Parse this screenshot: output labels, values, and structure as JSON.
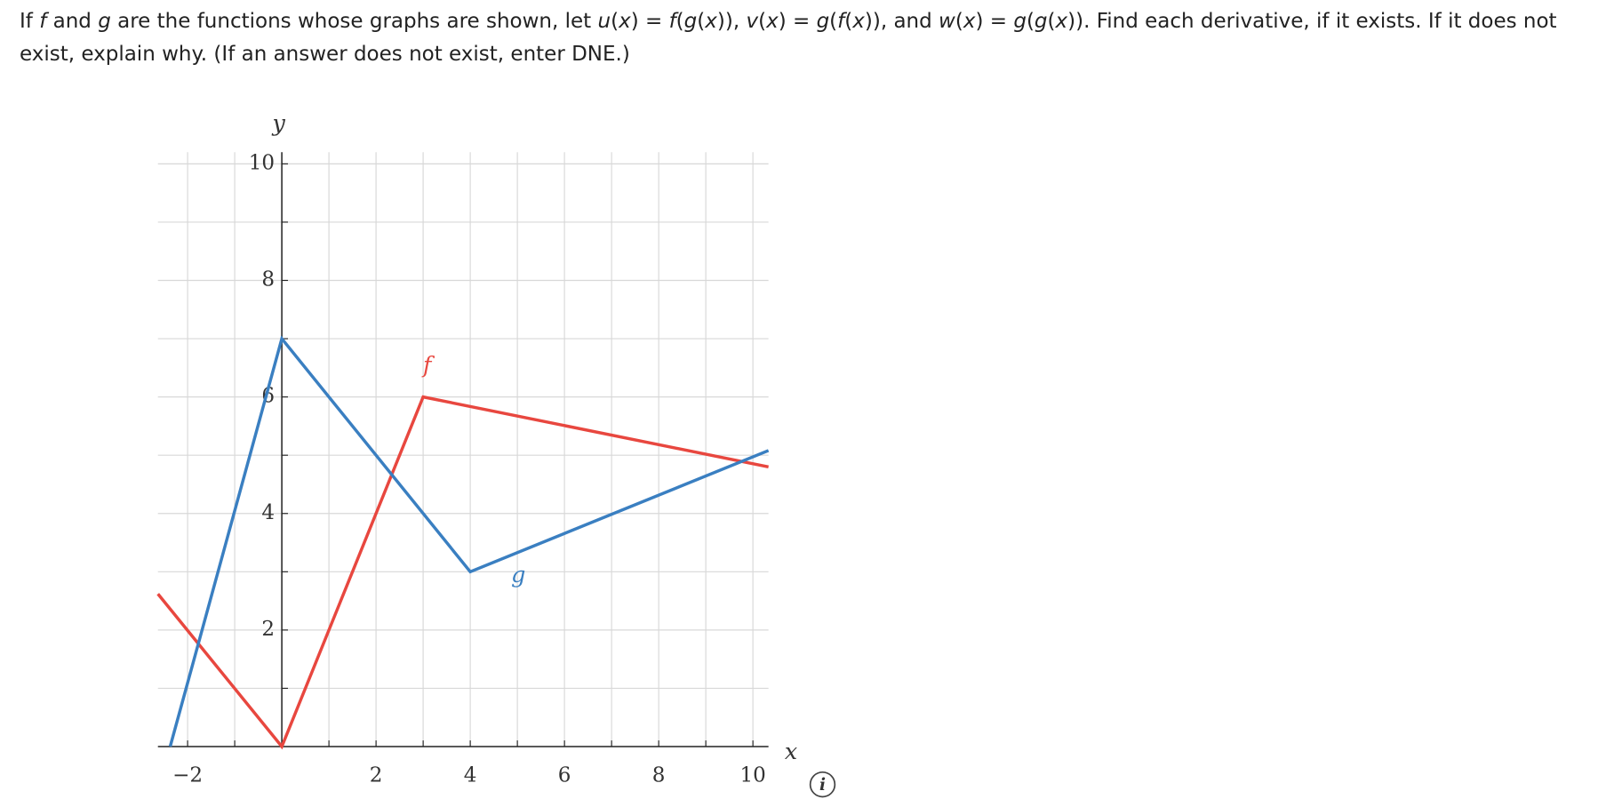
{
  "question": [
    {
      "text": "If ",
      "italic": false
    },
    {
      "text": "f",
      "italic": true
    },
    {
      "text": " and ",
      "italic": false
    },
    {
      "text": "g",
      "italic": true
    },
    {
      "text": " are the functions whose graphs are shown, let ",
      "italic": false
    },
    {
      "text": "u",
      "italic": true
    },
    {
      "text": "(",
      "italic": false
    },
    {
      "text": "x",
      "italic": true
    },
    {
      "text": ") = ",
      "italic": false
    },
    {
      "text": "f",
      "italic": true
    },
    {
      "text": "(",
      "italic": false
    },
    {
      "text": "g",
      "italic": true
    },
    {
      "text": "(",
      "italic": false
    },
    {
      "text": "x",
      "italic": true
    },
    {
      "text": ")), ",
      "italic": false
    },
    {
      "text": "v",
      "italic": true
    },
    {
      "text": "(",
      "italic": false
    },
    {
      "text": "x",
      "italic": true
    },
    {
      "text": ") = ",
      "italic": false
    },
    {
      "text": "g",
      "italic": true
    },
    {
      "text": "(",
      "italic": false
    },
    {
      "text": "f",
      "italic": true
    },
    {
      "text": "(",
      "italic": false
    },
    {
      "text": "x",
      "italic": true
    },
    {
      "text": ")), and ",
      "italic": false
    },
    {
      "text": "w",
      "italic": true
    },
    {
      "text": "(",
      "italic": false
    },
    {
      "text": "x",
      "italic": true
    },
    {
      "text": ") = ",
      "italic": false
    },
    {
      "text": "g",
      "italic": true
    },
    {
      "text": "(",
      "italic": false
    },
    {
      "text": "g",
      "italic": true
    },
    {
      "text": "(",
      "italic": false
    },
    {
      "text": "x",
      "italic": true
    },
    {
      "text": ")). Find each derivative, if it exists. If it does not exist, explain why. (If an answer does not exist, enter DNE.)",
      "italic": false
    }
  ],
  "chart_data": {
    "type": "line",
    "x_label": "x",
    "y_label": "y",
    "xlim": [
      -2.63,
      10.33
    ],
    "ylim": [
      0,
      10.2
    ],
    "xticks": [
      {
        "value": -2,
        "label": "−2"
      },
      2,
      4,
      6,
      8,
      10
    ],
    "yticks": [
      2,
      4,
      6,
      8,
      10
    ],
    "xgrid": [
      -2,
      -1,
      0,
      1,
      2,
      3,
      4,
      5,
      6,
      7,
      8,
      9,
      10
    ],
    "ygrid": [
      1,
      2,
      3,
      4,
      5,
      6,
      7,
      8,
      9,
      10
    ],
    "grid": true,
    "series": [
      {
        "name": "f",
        "color": "#e8473f",
        "x": [
          -2.63,
          0,
          3,
          10.33
        ],
        "values": [
          2.62,
          0,
          6,
          4.8
        ]
      },
      {
        "name": "g",
        "color": "#3a7fc1",
        "x": [
          -2.37,
          0,
          4,
          10.33
        ],
        "values": [
          0,
          7,
          3,
          5.08
        ]
      }
    ]
  }
}
